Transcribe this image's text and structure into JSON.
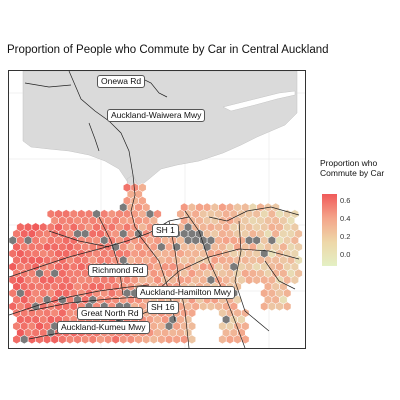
{
  "title": "Proportion of People who Commute by Car in Central Auckland",
  "legend": {
    "title_line1": "Proportion who",
    "title_line2": "Commute by Car",
    "ticks": [
      "0.6",
      "0.4",
      "0.2",
      "0.0"
    ],
    "range": [
      0,
      0.7
    ],
    "colors": {
      "high": "#f05a5a",
      "mid": "#f4a58a",
      "low": "#e4f0c4",
      "missing": "#7a7a7a"
    }
  },
  "road_labels": [
    "Onewa Rd",
    "Auckland-Waiwera Mwy",
    "SH 1",
    "Richmond Rd",
    "Auckland-Hamilton Mwy",
    "SH 16",
    "Great North Rd",
    "Auckland-Kumeu Mwy"
  ]
}
